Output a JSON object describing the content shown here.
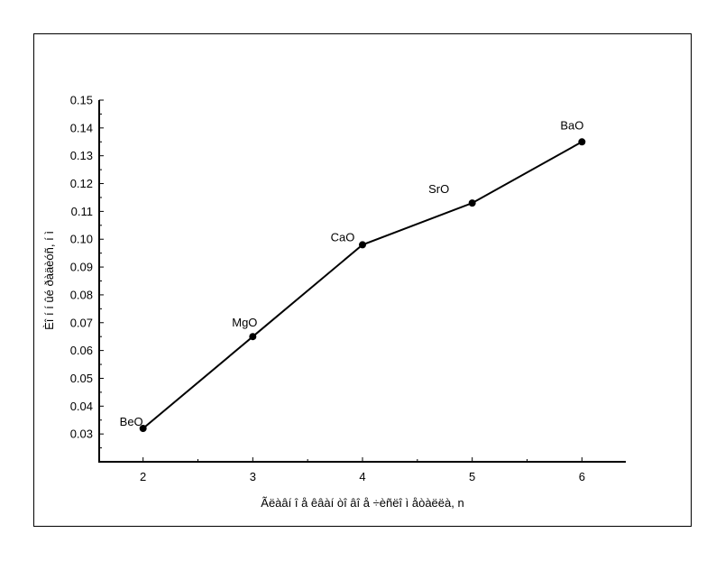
{
  "chart_data": {
    "type": "line",
    "title": "",
    "xlabel": "Ãëàâí î å êâàí òî âî å ÷èñëî  ì åòàëëà, n",
    "ylabel": "Èî í í ûé ðàäèóñ, í ì",
    "xlim": [
      1.6,
      6.4
    ],
    "ylim": [
      0.02,
      0.15
    ],
    "x_ticks": [
      2,
      3,
      4,
      5,
      6
    ],
    "y_ticks": [
      0.03,
      0.04,
      0.05,
      0.06,
      0.07,
      0.08,
      0.09,
      0.1,
      0.11,
      0.12,
      0.13,
      0.14,
      0.15
    ],
    "y_tick_labels": [
      "0.03",
      "0.04",
      "0.05",
      "0.06",
      "0.07",
      "0.08",
      "0.09",
      "0.10",
      "0.11",
      "0.12",
      "0.13",
      "0.14",
      "0.15"
    ],
    "x_tick_labels": [
      "2",
      "3",
      "4",
      "5",
      "6"
    ],
    "grid": false,
    "legend": "none",
    "series": [
      {
        "x": [
          2,
          3,
          4,
          5,
          6
        ],
        "y": [
          0.032,
          0.065,
          0.098,
          0.113,
          0.135
        ],
        "point_labels": [
          "BeO",
          "MgO",
          "CaO",
          "SrO",
          "BaO"
        ],
        "color": "#000000"
      }
    ]
  }
}
